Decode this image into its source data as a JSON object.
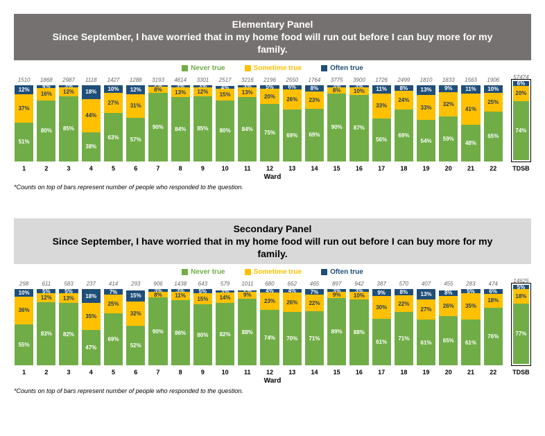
{
  "colors": {
    "never": "#70ad47",
    "sometime": "#ffc000",
    "often": "#1f4e79",
    "title_bg_elementary": "#767171",
    "title_bg_secondary": "#d9d9d9"
  },
  "legend": {
    "never": "Never true",
    "sometime": "Sometime true",
    "often": "Often true"
  },
  "x_axis_title": "Ward",
  "footnote": "*Counts on top of bars represent number of people who responded to the question.",
  "panels": [
    {
      "id": "elementary",
      "title_line1": "Elementary Panel",
      "title_line2": "Since September, I have worried that in my home food will run out before I can buy more for my family.",
      "title_bg": "title_bg_elementary",
      "title_secondary": false,
      "wards": [
        {
          "label": "1",
          "count": 1510,
          "never": 51,
          "sometime": 37,
          "often": 12
        },
        {
          "label": "2",
          "count": 1868,
          "never": 80,
          "sometime": 16,
          "often": 4
        },
        {
          "label": "3",
          "count": 2987,
          "never": 85,
          "sometime": 12,
          "often": 3
        },
        {
          "label": "4",
          "count": 1118,
          "never": 38,
          "sometime": 44,
          "often": 18
        },
        {
          "label": "5",
          "count": 1427,
          "never": 63,
          "sometime": 27,
          "often": 10
        },
        {
          "label": "6",
          "count": 1288,
          "never": 57,
          "sometime": 31,
          "often": 12
        },
        {
          "label": "7",
          "count": 3193,
          "never": 90,
          "sometime": 8,
          "often": 2
        },
        {
          "label": "8",
          "count": 4614,
          "never": 84,
          "sometime": 13,
          "often": 3
        },
        {
          "label": "9",
          "count": 3301,
          "never": 85,
          "sometime": 12,
          "often": 3
        },
        {
          "label": "10",
          "count": 2517,
          "never": 80,
          "sometime": 15,
          "often": 4
        },
        {
          "label": "11",
          "count": 3216,
          "never": 84,
          "sometime": 13,
          "often": 3
        },
        {
          "label": "12",
          "count": 2196,
          "never": 75,
          "sometime": 20,
          "often": 5
        },
        {
          "label": "13",
          "count": 2550,
          "never": 69,
          "sometime": 26,
          "often": 6
        },
        {
          "label": "14",
          "count": 1764,
          "never": 69,
          "sometime": 23,
          "often": 8
        },
        {
          "label": "15",
          "count": 3775,
          "never": 90,
          "sometime": 8,
          "often": 3
        },
        {
          "label": "16",
          "count": 3900,
          "never": 87,
          "sometime": 10,
          "often": 3
        },
        {
          "label": "17",
          "count": 1726,
          "never": 56,
          "sometime": 33,
          "often": 11
        },
        {
          "label": "18",
          "count": 2499,
          "never": 69,
          "sometime": 24,
          "often": 8
        },
        {
          "label": "19",
          "count": 1810,
          "never": 54,
          "sometime": 33,
          "often": 13
        },
        {
          "label": "20",
          "count": 1833,
          "never": 59,
          "sometime": 32,
          "often": 9
        },
        {
          "label": "21",
          "count": 1563,
          "never": 48,
          "sometime": 41,
          "often": 11
        },
        {
          "label": "22",
          "count": 1906,
          "never": 65,
          "sometime": 25,
          "often": 10
        },
        {
          "label": "TDSB",
          "count": 57474,
          "never": 74,
          "sometime": 20,
          "often": 6,
          "total": true
        }
      ]
    },
    {
      "id": "secondary",
      "title_line1": "Secondary Panel",
      "title_line2": "Since September, I have worried that in my home food will run out before I can buy more for my family.",
      "title_bg": "title_bg_secondary",
      "title_secondary": true,
      "wards": [
        {
          "label": "1",
          "count": 298,
          "never": 55,
          "sometime": 36,
          "often": 10
        },
        {
          "label": "2",
          "count": 611,
          "never": 83,
          "sometime": 12,
          "often": 5
        },
        {
          "label": "3",
          "count": 583,
          "never": 82,
          "sometime": 13,
          "often": 5
        },
        {
          "label": "4",
          "count": 237,
          "never": 47,
          "sometime": 35,
          "often": 18
        },
        {
          "label": "5",
          "count": 414,
          "never": 69,
          "sometime": 25,
          "often": 7
        },
        {
          "label": "6",
          "count": 293,
          "never": 52,
          "sometime": 32,
          "often": 15
        },
        {
          "label": "7",
          "count": 906,
          "never": 90,
          "sometime": 8,
          "often": 3
        },
        {
          "label": "8",
          "count": 1438,
          "never": 86,
          "sometime": 11,
          "often": 3
        },
        {
          "label": "9",
          "count": 643,
          "never": 80,
          "sometime": 15,
          "often": 5
        },
        {
          "label": "10",
          "count": 579,
          "never": 82,
          "sometime": 14,
          "often": 3
        },
        {
          "label": "11",
          "count": 1011,
          "never": 88,
          "sometime": 9,
          "often": 2
        },
        {
          "label": "12",
          "count": 680,
          "never": 74,
          "sometime": 23,
          "often": 4
        },
        {
          "label": "13",
          "count": 662,
          "never": 70,
          "sometime": 26,
          "often": 4
        },
        {
          "label": "14",
          "count": 465,
          "never": 71,
          "sometime": 22,
          "often": 7
        },
        {
          "label": "15",
          "count": 897,
          "never": 89,
          "sometime": 9,
          "often": 3
        },
        {
          "label": "16",
          "count": 942,
          "never": 88,
          "sometime": 10,
          "often": 3
        },
        {
          "label": "17",
          "count": 387,
          "never": 61,
          "sometime": 30,
          "often": 9
        },
        {
          "label": "18",
          "count": 570,
          "never": 71,
          "sometime": 22,
          "often": 8
        },
        {
          "label": "19",
          "count": 407,
          "never": 61,
          "sometime": 27,
          "often": 13
        },
        {
          "label": "20",
          "count": 455,
          "never": 65,
          "sometime": 26,
          "often": 8
        },
        {
          "label": "21",
          "count": 283,
          "never": 61,
          "sometime": 35,
          "often": 5
        },
        {
          "label": "22",
          "count": 474,
          "never": 76,
          "sometime": 18,
          "often": 6
        },
        {
          "label": "TDSB",
          "count": 14625,
          "never": 77,
          "sometime": 18,
          "often": 5,
          "total": true
        }
      ]
    }
  ]
}
